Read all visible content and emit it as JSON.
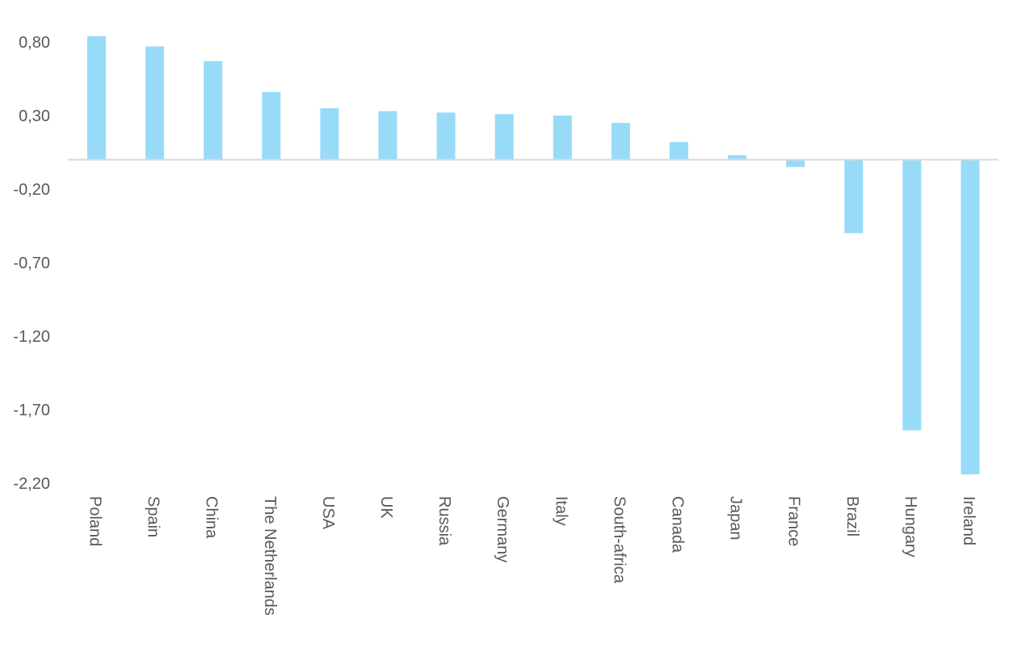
{
  "chart_data": {
    "type": "bar",
    "categories": [
      "Poland",
      "Spain",
      "China",
      "The Netherlands",
      "USA",
      "UK",
      "Russia",
      "Germany",
      "Italy",
      "South-africa",
      "Canada",
      "Japan",
      "France",
      "Brazil",
      "Hungary",
      "Ireland"
    ],
    "series": [
      {
        "values": [
          0.84,
          0.77,
          0.67,
          0.46,
          0.35,
          0.33,
          0.32,
          0.31,
          0.3,
          0.25,
          0.12,
          0.03,
          -0.05,
          -0.5,
          -1.84,
          -2.14
        ]
      }
    ],
    "yticks": [
      0.8,
      0.3,
      -0.2,
      -0.7,
      -1.2,
      -1.7,
      -2.2
    ],
    "ytick_labels": [
      "0,80",
      "0,30",
      "-0,20",
      "-0,70",
      "-1,20",
      "-1,70",
      "-2,20"
    ],
    "ylim": [
      -2.2,
      0.85
    ],
    "grid": false,
    "legend": "none",
    "colors": {
      "bar": "#97DBF9",
      "axis_text": "#595959",
      "zero_line": "#d9d9d9"
    }
  }
}
